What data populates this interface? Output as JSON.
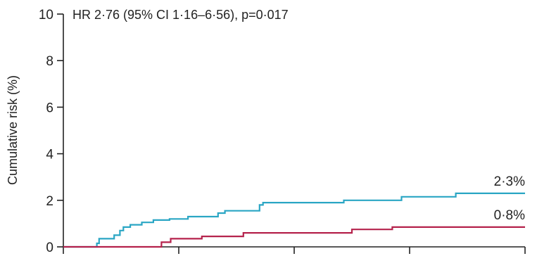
{
  "chart_data": {
    "type": "line",
    "annotation": "HR 2·76 (95% CI 1·16–6·56), p=0·017",
    "ylabel": "Cumulative risk (%)",
    "xlabel": "",
    "ylim": [
      0,
      10
    ],
    "yticks": [
      "0",
      "2",
      "4",
      "6",
      "8",
      "10"
    ],
    "xlim": [
      0,
      4
    ],
    "xticks": [
      0,
      1,
      2,
      3,
      4
    ],
    "grid": false,
    "series": [
      {
        "color": "#2aa6c4",
        "end_label": "2·3%",
        "x": [
          0,
          0.27,
          0.29,
          0.31,
          0.44,
          0.49,
          0.52,
          0.58,
          0.68,
          0.78,
          0.92,
          1.08,
          1.34,
          1.4,
          1.7,
          1.73,
          2.43,
          2.93,
          3.4,
          4.0
        ],
        "y": [
          0,
          0,
          0.15,
          0.35,
          0.5,
          0.7,
          0.85,
          0.95,
          1.05,
          1.15,
          1.2,
          1.3,
          1.45,
          1.55,
          1.8,
          1.9,
          2.0,
          2.15,
          2.3,
          2.3
        ]
      },
      {
        "color": "#b5224c",
        "end_label": "0·8%",
        "x": [
          0,
          0.8,
          0.85,
          0.93,
          1.2,
          1.56,
          2.5,
          2.85,
          4.0
        ],
        "y": [
          0,
          0,
          0.2,
          0.35,
          0.45,
          0.6,
          0.75,
          0.85,
          0.85
        ]
      }
    ]
  }
}
